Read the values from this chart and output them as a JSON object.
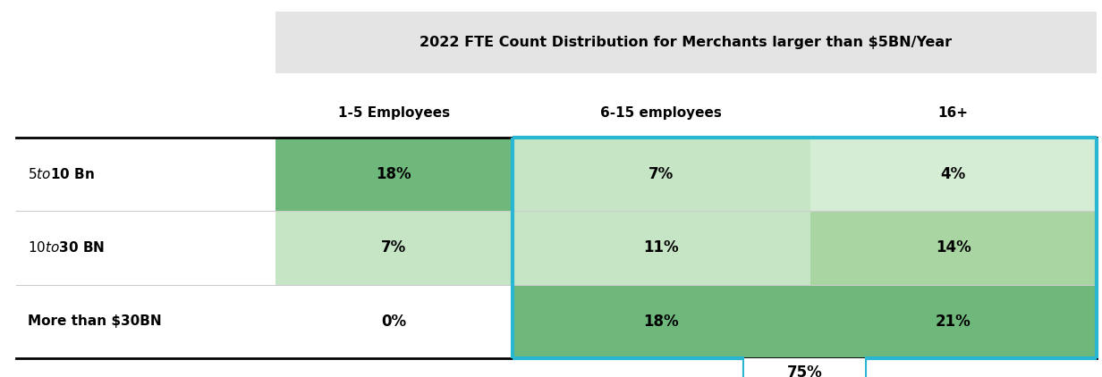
{
  "title": "2022 FTE Count Distribution for Merchants larger than $5BN/Year",
  "col_headers": [
    "1-5 Employees",
    "6-15 employees",
    "16+"
  ],
  "row_labels": [
    "$5 to $10 Bn",
    "$10 to $30 BN",
    "More than $30BN"
  ],
  "values": [
    [
      "18%",
      "7%",
      "4%"
    ],
    [
      "7%",
      "11%",
      "14%"
    ],
    [
      "0%",
      "18%",
      "21%"
    ]
  ],
  "cell_colors": [
    [
      "#6DB87A",
      "#C5E5C5",
      "#D5EDD5"
    ],
    [
      "#C5E5C5",
      "#C5E5C5",
      "#A8D5A2"
    ],
    [
      "#FFFFFF",
      "#6DB87A",
      "#6DB87A"
    ]
  ],
  "highlight_total": "75%",
  "title_bg": "#E4E4E4",
  "border_color": "#29B6D2",
  "figure_bg": "#FFFFFF",
  "lw_thick": 2.0,
  "lw_border": 3.0,
  "lw_sep": 0.8
}
